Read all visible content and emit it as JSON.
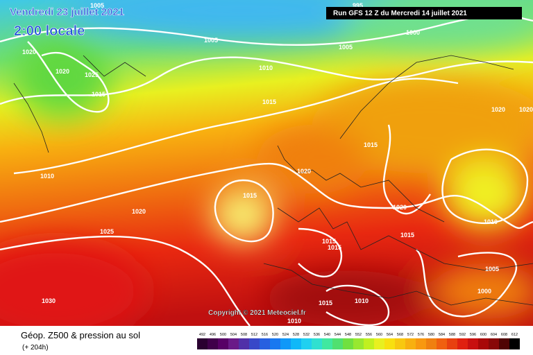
{
  "header": {
    "date": "Vendredi 23 juillet 2021",
    "time": "2:00 locale",
    "run": "Run GFS 12 Z du Mercredi 14 juillet 2021"
  },
  "isobars": [
    1005,
    995,
    1000,
    1005,
    1005,
    1020,
    1020,
    1025,
    1010,
    1015,
    1015,
    1020,
    1020,
    1015,
    1020,
    1010,
    1015,
    1020,
    1020,
    1010,
    1025,
    1015,
    1015,
    1015,
    1005,
    1000,
    1030,
    1015,
    1010,
    1010
  ],
  "copyright": "Copyright © 2021 Meteociel.fr",
  "legend": {
    "title": "Géop. Z500 & pression au sol",
    "lead": "(+ 204h)",
    "scale": [
      492,
      496,
      500,
      504,
      508,
      512,
      516,
      520,
      524,
      528,
      532,
      536,
      540,
      544,
      548,
      552,
      556,
      560,
      564,
      568,
      572,
      576,
      580,
      584,
      588,
      592,
      596,
      600,
      604,
      608,
      612
    ]
  }
}
